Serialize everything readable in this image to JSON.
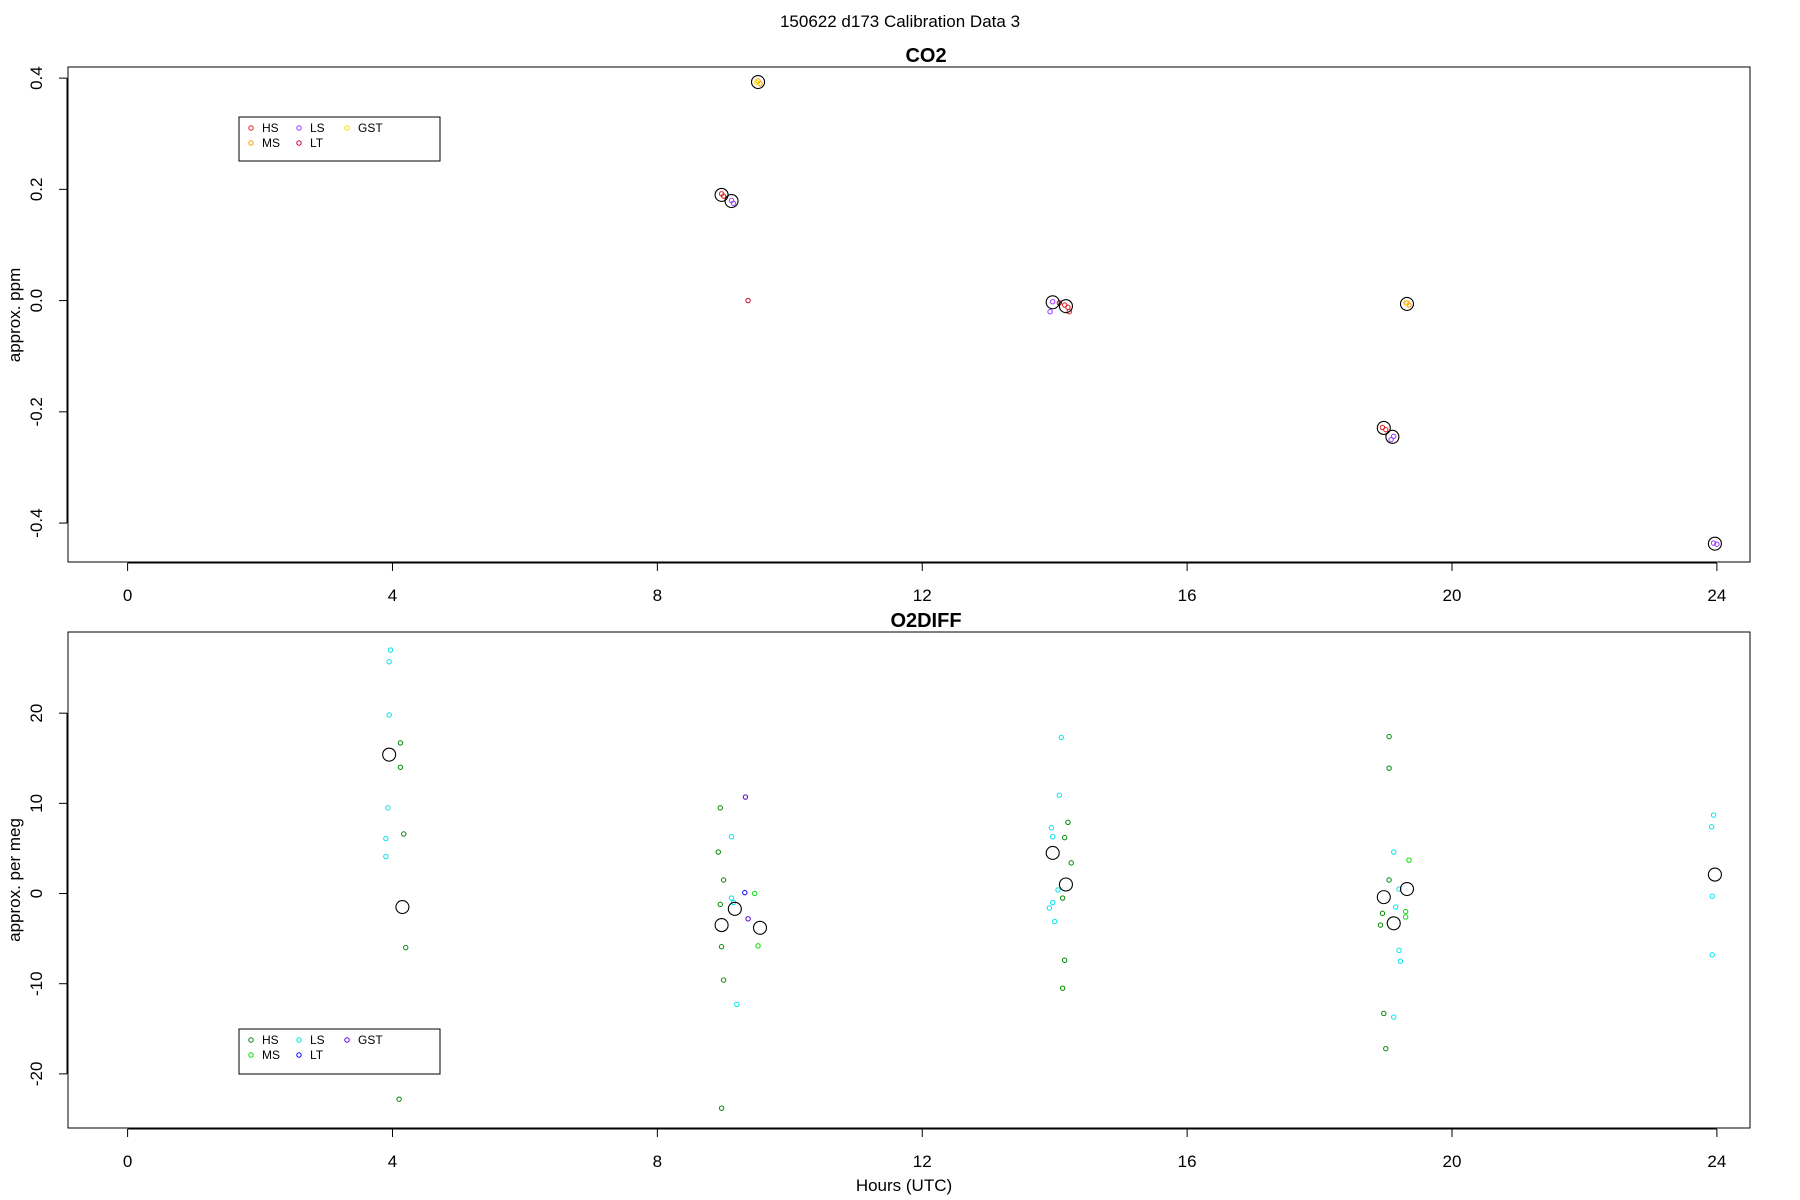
{
  "figure_title": "150622   d173   Calibration Data 3",
  "colors": {
    "co2": {
      "HS": "#e41a1c",
      "MS": "#ff9900",
      "LS": "#9933ff",
      "LT": "#cc0033",
      "GST": "#ffdd00"
    },
    "o2diff": {
      "HS": "#008800",
      "MS": "#00dd00",
      "LS": "#00e5ee",
      "LT": "#0000ff",
      "GST": "#5500cc"
    },
    "mean_marker": "#000000"
  },
  "chart_data": [
    {
      "type": "scatter",
      "title": "CO2",
      "xlabel": "",
      "ylabel": "approx. ppm",
      "xlim": [
        -0.9,
        24.5
      ],
      "ylim": [
        -0.47,
        0.42
      ],
      "xticks": [
        "0",
        "4",
        "8",
        "12",
        "16",
        "20",
        "24"
      ],
      "yticks": [
        "-0.4",
        "-0.2",
        "0.0",
        "0.2",
        "0.4"
      ],
      "grid": false,
      "legend": {
        "position": "top-left",
        "entries": [
          "HS",
          "MS",
          "LS",
          "LT",
          "GST"
        ]
      },
      "series": [
        {
          "name": "HS",
          "points": [
            [
              8.97,
              0.192
            ],
            [
              9.0,
              0.188
            ],
            [
              14.15,
              -0.008
            ],
            [
              14.2,
              -0.012
            ],
            [
              14.22,
              -0.02
            ],
            [
              18.95,
              -0.228
            ],
            [
              19.0,
              -0.232
            ]
          ]
        },
        {
          "name": "MS",
          "points": [
            [
              9.52,
              0.395
            ],
            [
              9.55,
              0.39
            ],
            [
              19.32,
              -0.004
            ],
            [
              19.35,
              -0.008
            ]
          ]
        },
        {
          "name": "LS",
          "points": [
            [
              9.12,
              0.18
            ],
            [
              9.15,
              0.175
            ],
            [
              13.97,
              -0.002
            ],
            [
              13.93,
              -0.02
            ],
            [
              19.12,
              -0.244
            ],
            [
              19.08,
              -0.25
            ],
            [
              23.95,
              -0.436
            ],
            [
              24.0,
              -0.438
            ]
          ]
        },
        {
          "name": "LT",
          "points": [
            [
              9.37,
              0.0
            ],
            [
              14.07,
              -0.004
            ]
          ]
        },
        {
          "name": "GST",
          "points": [
            [
              9.5,
              0.392
            ],
            [
              19.3,
              -0.004
            ]
          ]
        },
        {
          "name": "",
          "points": [
            [
              8.97,
              0.19
            ],
            [
              9.12,
              0.179
            ],
            [
              9.52,
              0.393
            ],
            [
              13.97,
              -0.003
            ],
            [
              14.17,
              -0.01
            ],
            [
              18.97,
              -0.229
            ],
            [
              19.1,
              -0.245
            ],
            [
              19.32,
              -0.006
            ],
            [
              23.97,
              -0.437
            ]
          ]
        }
      ]
    },
    {
      "type": "scatter",
      "title": "O2DIFF",
      "xlabel": "Hours (UTC)",
      "ylabel": "approx. per meg",
      "xlim": [
        -0.9,
        24.5
      ],
      "ylim": [
        -26,
        29
      ],
      "xticks": [
        "0",
        "4",
        "8",
        "12",
        "16",
        "20",
        "24"
      ],
      "yticks": [
        "-20",
        "-10",
        "0",
        "10",
        "20"
      ],
      "grid": false,
      "legend": {
        "position": "bottom-left",
        "entries": [
          "HS",
          "MS",
          "LS",
          "LT",
          "GST"
        ]
      },
      "series": [
        {
          "name": "HS",
          "points": [
            [
              4.12,
              16.7
            ],
            [
              4.12,
              14.0
            ],
            [
              4.17,
              6.6
            ],
            [
              4.2,
              -6.0
            ],
            [
              4.1,
              -22.8
            ],
            [
              8.95,
              9.5
            ],
            [
              8.92,
              4.6
            ],
            [
              9.0,
              1.5
            ],
            [
              8.95,
              -1.2
            ],
            [
              8.97,
              -5.9
            ],
            [
              9.0,
              -9.6
            ],
            [
              8.97,
              -23.8
            ],
            [
              14.2,
              7.9
            ],
            [
              14.15,
              6.2
            ],
            [
              14.25,
              3.4
            ],
            [
              14.12,
              -0.5
            ],
            [
              14.15,
              -7.4
            ],
            [
              14.12,
              -10.5
            ],
            [
              19.05,
              17.4
            ],
            [
              19.05,
              13.9
            ],
            [
              19.05,
              1.5
            ],
            [
              18.95,
              -2.2
            ],
            [
              18.92,
              -3.5
            ],
            [
              18.97,
              -13.3
            ],
            [
              19.0,
              -17.2
            ]
          ]
        },
        {
          "name": "MS",
          "points": [
            [
              9.47,
              0.0
            ],
            [
              9.52,
              -5.8
            ],
            [
              19.35,
              3.7
            ],
            [
              19.3,
              -2.0
            ],
            [
              19.3,
              -2.6
            ]
          ]
        },
        {
          "name": "LS",
          "points": [
            [
              3.97,
              27.0
            ],
            [
              3.95,
              25.7
            ],
            [
              3.95,
              19.8
            ],
            [
              3.93,
              9.5
            ],
            [
              3.9,
              6.1
            ],
            [
              3.9,
              4.1
            ],
            [
              9.12,
              6.3
            ],
            [
              9.12,
              -0.5
            ],
            [
              9.15,
              -1.0
            ],
            [
              9.2,
              -12.3
            ],
            [
              14.1,
              17.3
            ],
            [
              14.07,
              10.9
            ],
            [
              13.95,
              7.3
            ],
            [
              13.97,
              6.3
            ],
            [
              14.05,
              0.4
            ],
            [
              13.97,
              -1.0
            ],
            [
              13.92,
              -1.6
            ],
            [
              14.0,
              -3.1
            ],
            [
              19.12,
              4.6
            ],
            [
              19.2,
              0.5
            ],
            [
              19.15,
              -1.5
            ],
            [
              19.2,
              -6.3
            ],
            [
              19.22,
              -7.5
            ],
            [
              19.12,
              -13.7
            ],
            [
              23.95,
              8.7
            ],
            [
              23.92,
              7.4
            ],
            [
              23.93,
              -0.3
            ],
            [
              23.93,
              -6.8
            ]
          ]
        },
        {
          "name": "LT",
          "points": [
            [
              9.32,
              0.1
            ]
          ]
        },
        {
          "name": "GST",
          "points": [
            [
              9.33,
              10.7
            ],
            [
              9.37,
              -2.8
            ]
          ]
        },
        {
          "name": "",
          "points": [
            [
              3.95,
              15.4
            ],
            [
              4.15,
              -1.5
            ],
            [
              8.97,
              -3.5
            ],
            [
              9.17,
              -1.7
            ],
            [
              9.55,
              -3.8
            ],
            [
              13.97,
              4.5
            ],
            [
              14.17,
              1.0
            ],
            [
              18.97,
              -0.4
            ],
            [
              19.12,
              -3.3
            ],
            [
              19.32,
              0.5
            ],
            [
              23.97,
              2.1
            ]
          ]
        }
      ]
    }
  ]
}
